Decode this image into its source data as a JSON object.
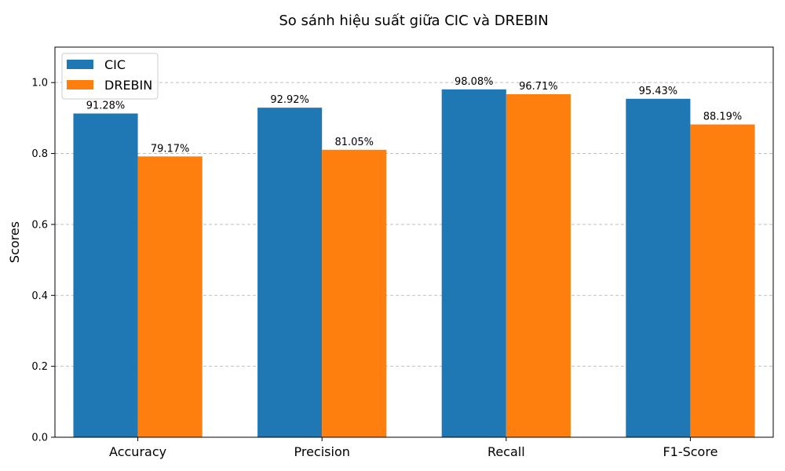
{
  "chart_data": {
    "type": "bar",
    "title": "So sánh hiệu suất giữa CIC và DREBIN",
    "xlabel": "",
    "ylabel": "Scores",
    "categories": [
      "Accuracy",
      "Precision",
      "Recall",
      "F1-Score"
    ],
    "series": [
      {
        "name": "CIC",
        "color": "#1f77b4",
        "values": [
          0.9128,
          0.9292,
          0.9808,
          0.9543
        ],
        "labels": [
          "91.28%",
          "92.92%",
          "98.08%",
          "95.43%"
        ]
      },
      {
        "name": "DREBIN",
        "color": "#ff7f0e",
        "values": [
          0.7917,
          0.8105,
          0.9671,
          0.8819
        ],
        "labels": [
          "79.17%",
          "81.05%",
          "96.71%",
          "88.19%"
        ]
      }
    ],
    "ylim": [
      0,
      1.1
    ],
    "yticks": [
      "0.0",
      "0.2",
      "0.4",
      "0.6",
      "0.8",
      "1.0"
    ],
    "grid": "y-dashed",
    "legend": "top-left"
  }
}
